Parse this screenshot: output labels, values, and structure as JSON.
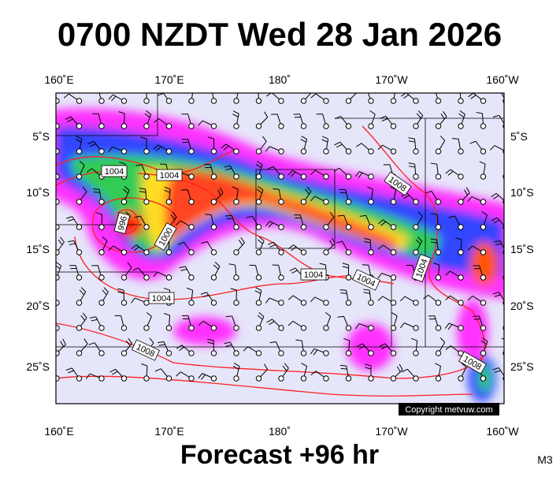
{
  "header": {
    "title": "0700 NZDT Wed 28 Jan 2026"
  },
  "map": {
    "lon_labels": [
      "160˚E",
      "170˚E",
      "180˚",
      "170˚W",
      "160˚W"
    ],
    "lat_labels": [
      "5˚S",
      "10˚S",
      "15˚S",
      "20˚S",
      "25˚S"
    ],
    "isobar_labels": [
      "1004",
      "1004",
      "1008",
      "996",
      "1000",
      "1004",
      "1004",
      "1004",
      "1004",
      "1008",
      "1008"
    ],
    "copyright": "Copyright metvuw.com"
  },
  "footer": {
    "title": "Forecast +96 hr",
    "model": "M3"
  }
}
